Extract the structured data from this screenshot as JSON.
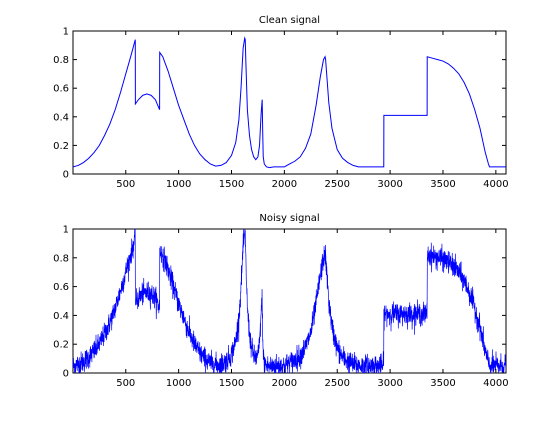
{
  "chart_data": [
    {
      "type": "line",
      "title": "Clean signal",
      "xlabel": "",
      "ylabel": "",
      "xlim": [
        1,
        4096
      ],
      "ylim": [
        0,
        1
      ],
      "xticks": [
        500,
        1000,
        1500,
        2000,
        2500,
        3000,
        3500,
        4000
      ],
      "yticks": [
        0,
        0.2,
        0.4,
        0.6,
        0.8,
        1
      ],
      "ytick_labels": [
        "0",
        "0.2",
        "0.4",
        "0.6",
        "0.8",
        "1"
      ],
      "grid": false,
      "color": "#0000ff",
      "series": [
        {
          "x": [
            1,
            50,
            100,
            150,
            200,
            250,
            300,
            350,
            400,
            450,
            500,
            550,
            590,
            591,
            620,
            660,
            700,
            740,
            780,
            820,
            821,
            850,
            900,
            950,
            1000,
            1050,
            1100,
            1150,
            1200,
            1250,
            1300,
            1350,
            1400,
            1450,
            1500,
            1540,
            1570,
            1590,
            1610,
            1625,
            1630,
            1635,
            1650,
            1670,
            1690,
            1710,
            1730,
            1750,
            1765,
            1780,
            1790,
            1795,
            1800,
            1810,
            1830,
            1860,
            1900,
            1950,
            2000,
            2050,
            2100,
            2150,
            2200,
            2250,
            2300,
            2340,
            2370,
            2385,
            2390,
            2400,
            2420,
            2450,
            2500,
            2550,
            2600,
            2650,
            2700,
            2750,
            2800,
            2900,
            2940,
            2941,
            3000,
            3100,
            3200,
            3300,
            3350,
            3351,
            3400,
            3450,
            3500,
            3550,
            3600,
            3650,
            3700,
            3750,
            3800,
            3850,
            3900,
            3930,
            3940,
            4000,
            4096
          ],
          "y": [
            0.05,
            0.06,
            0.08,
            0.11,
            0.15,
            0.2,
            0.27,
            0.35,
            0.45,
            0.57,
            0.7,
            0.83,
            0.94,
            0.49,
            0.52,
            0.55,
            0.56,
            0.55,
            0.52,
            0.45,
            0.85,
            0.82,
            0.72,
            0.6,
            0.48,
            0.38,
            0.28,
            0.2,
            0.14,
            0.1,
            0.07,
            0.055,
            0.06,
            0.08,
            0.13,
            0.22,
            0.38,
            0.6,
            0.88,
            0.95,
            0.94,
            0.8,
            0.45,
            0.27,
            0.17,
            0.12,
            0.1,
            0.12,
            0.2,
            0.42,
            0.52,
            0.3,
            0.12,
            0.07,
            0.05,
            0.045,
            0.05,
            0.05,
            0.05,
            0.07,
            0.09,
            0.12,
            0.18,
            0.28,
            0.48,
            0.68,
            0.8,
            0.82,
            0.8,
            0.7,
            0.5,
            0.32,
            0.17,
            0.11,
            0.08,
            0.06,
            0.05,
            0.05,
            0.05,
            0.05,
            0.05,
            0.41,
            0.41,
            0.41,
            0.41,
            0.41,
            0.41,
            0.82,
            0.81,
            0.8,
            0.79,
            0.77,
            0.74,
            0.7,
            0.64,
            0.56,
            0.45,
            0.32,
            0.15,
            0.07,
            0.05,
            0.05,
            0.05
          ]
        }
      ]
    },
    {
      "type": "line",
      "title": "Noisy signal",
      "xlabel": "",
      "ylabel": "",
      "xlim": [
        1,
        4096
      ],
      "ylim": [
        0,
        1
      ],
      "xticks": [
        500,
        1000,
        1500,
        2000,
        2500,
        3000,
        3500,
        4000
      ],
      "yticks": [
        0,
        0.2,
        0.4,
        0.6,
        0.8,
        1
      ],
      "ytick_labels": [
        "0",
        "0.2",
        "0.4",
        "0.6",
        "0.8",
        "1"
      ],
      "grid": false,
      "color": "#0000ff",
      "noise_amplitude": 0.07,
      "series": [
        {
          "x": [
            1,
            50,
            100,
            150,
            200,
            250,
            300,
            350,
            400,
            450,
            500,
            550,
            590,
            591,
            620,
            660,
            700,
            740,
            780,
            820,
            821,
            850,
            900,
            950,
            1000,
            1050,
            1100,
            1150,
            1200,
            1250,
            1300,
            1350,
            1400,
            1450,
            1500,
            1540,
            1570,
            1590,
            1610,
            1625,
            1630,
            1635,
            1650,
            1670,
            1690,
            1710,
            1730,
            1750,
            1765,
            1780,
            1790,
            1795,
            1800,
            1810,
            1830,
            1860,
            1900,
            1950,
            2000,
            2050,
            2100,
            2150,
            2200,
            2250,
            2300,
            2340,
            2370,
            2385,
            2390,
            2400,
            2420,
            2450,
            2500,
            2550,
            2600,
            2650,
            2700,
            2750,
            2800,
            2900,
            2940,
            2941,
            3000,
            3100,
            3200,
            3300,
            3350,
            3351,
            3400,
            3450,
            3500,
            3550,
            3600,
            3650,
            3700,
            3750,
            3800,
            3850,
            3900,
            3930,
            3940,
            4000,
            4096
          ],
          "y": [
            0.05,
            0.06,
            0.08,
            0.11,
            0.15,
            0.2,
            0.27,
            0.35,
            0.45,
            0.57,
            0.7,
            0.83,
            0.94,
            0.49,
            0.52,
            0.55,
            0.56,
            0.55,
            0.52,
            0.45,
            0.85,
            0.82,
            0.72,
            0.6,
            0.48,
            0.38,
            0.28,
            0.2,
            0.14,
            0.1,
            0.07,
            0.055,
            0.06,
            0.08,
            0.13,
            0.22,
            0.38,
            0.6,
            0.88,
            0.95,
            0.94,
            0.8,
            0.45,
            0.27,
            0.17,
            0.12,
            0.1,
            0.12,
            0.2,
            0.42,
            0.52,
            0.3,
            0.12,
            0.07,
            0.05,
            0.045,
            0.05,
            0.05,
            0.05,
            0.07,
            0.09,
            0.12,
            0.18,
            0.28,
            0.48,
            0.68,
            0.8,
            0.82,
            0.8,
            0.7,
            0.5,
            0.32,
            0.17,
            0.11,
            0.08,
            0.06,
            0.05,
            0.05,
            0.05,
            0.05,
            0.05,
            0.41,
            0.41,
            0.41,
            0.41,
            0.41,
            0.41,
            0.82,
            0.81,
            0.8,
            0.79,
            0.77,
            0.74,
            0.7,
            0.64,
            0.56,
            0.45,
            0.32,
            0.15,
            0.07,
            0.05,
            0.05,
            0.05
          ]
        }
      ]
    }
  ]
}
